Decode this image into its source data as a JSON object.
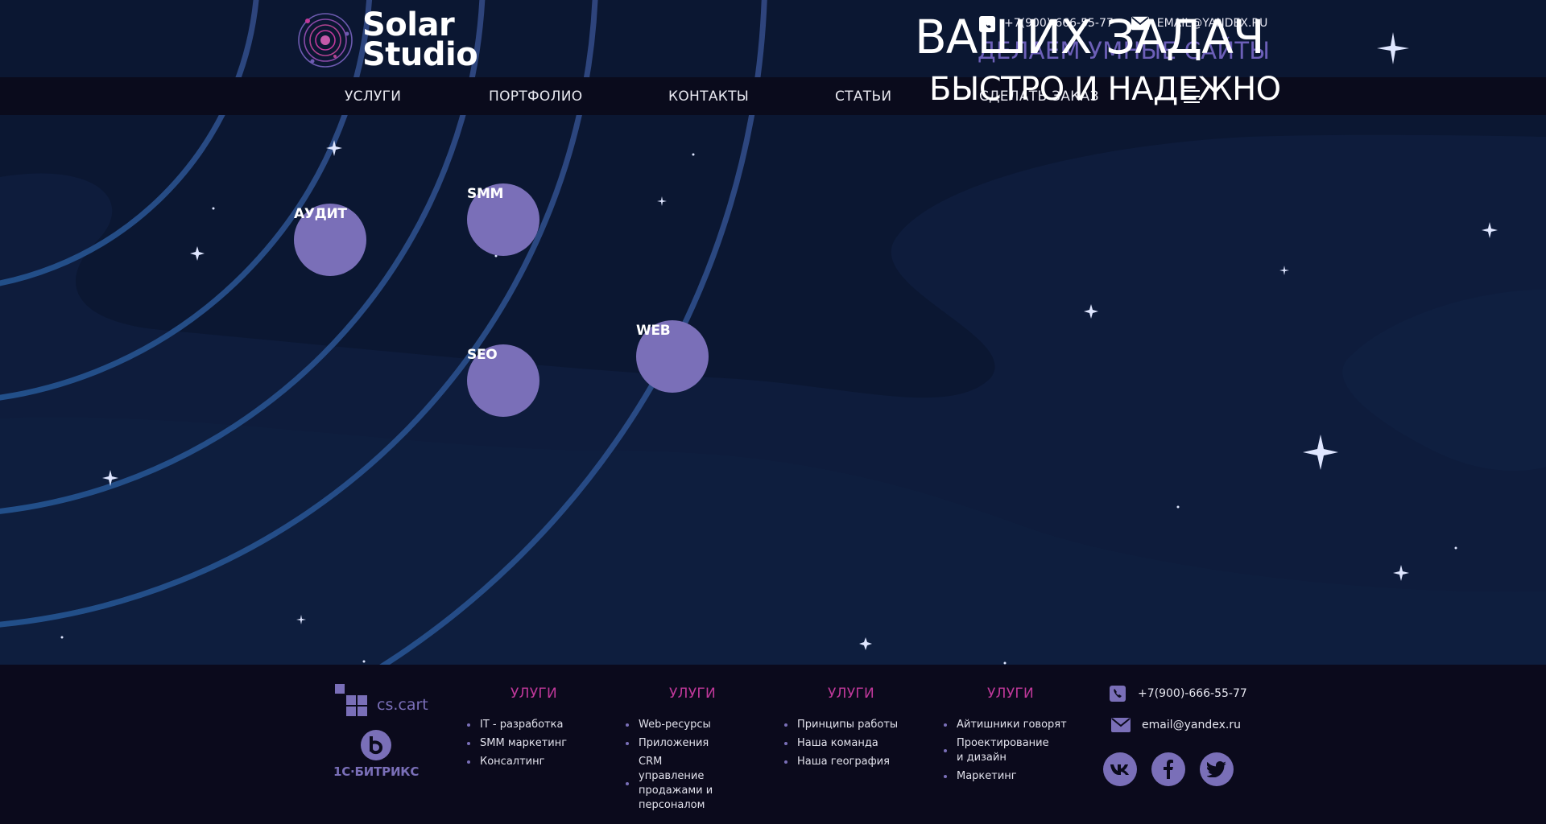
{
  "brand": {
    "name_line1": "Solar",
    "name_line2": "Studio",
    "accent": "#7a6fb8",
    "pink": "#c0389a"
  },
  "header": {
    "phone": "+7(900)-666-55-77",
    "email": "EMAIL@YANDEX.RU",
    "headline_main": "ВАШИХ ЗАДАЧ",
    "headline_sub": "ДЕЛАЕМ УМНЫЕ САЙТЫ",
    "headline_sub2": "БЫСТРО И НАДЕЖНО",
    "icons": {
      "phone": "phone-icon",
      "email": "email-icon",
      "menu": "burger-menu-icon"
    }
  },
  "nav": {
    "items": [
      "УСЛУГИ",
      "ПОРТФОЛИО",
      "КОНТАКТЫ",
      "СТАТЬИ",
      "СДЕЛАТЬ ЗАКАЗ"
    ]
  },
  "services": {
    "audit": "АУДИТ",
    "smm": "SMM",
    "seo": "SEO",
    "web": "WEB"
  },
  "footer": {
    "partners": [
      "cs.cart",
      "1С·БИТРИКС"
    ],
    "columns": [
      {
        "title": "УЛУГИ",
        "items": [
          "IT - разработка",
          "SMM маркетинг",
          "Консалтинг"
        ]
      },
      {
        "title": "УЛУГИ",
        "items": [
          "Web-ресурсы",
          "Приложения",
          "CRM управление продажами и персоналом"
        ]
      },
      {
        "title": "УЛУГИ",
        "items": [
          "Принципы работы",
          "Наша команда",
          "Наша география"
        ]
      },
      {
        "title": "УЛУГИ",
        "items": [
          "Айтишники говорят",
          "Проектирование и дизайн",
          "Маркетинг"
        ]
      }
    ],
    "phone": "+7(900)-666-55-77",
    "email": "email@yandex.ru",
    "social": [
      "vk-icon",
      "facebook-icon",
      "twitter-icon"
    ]
  }
}
